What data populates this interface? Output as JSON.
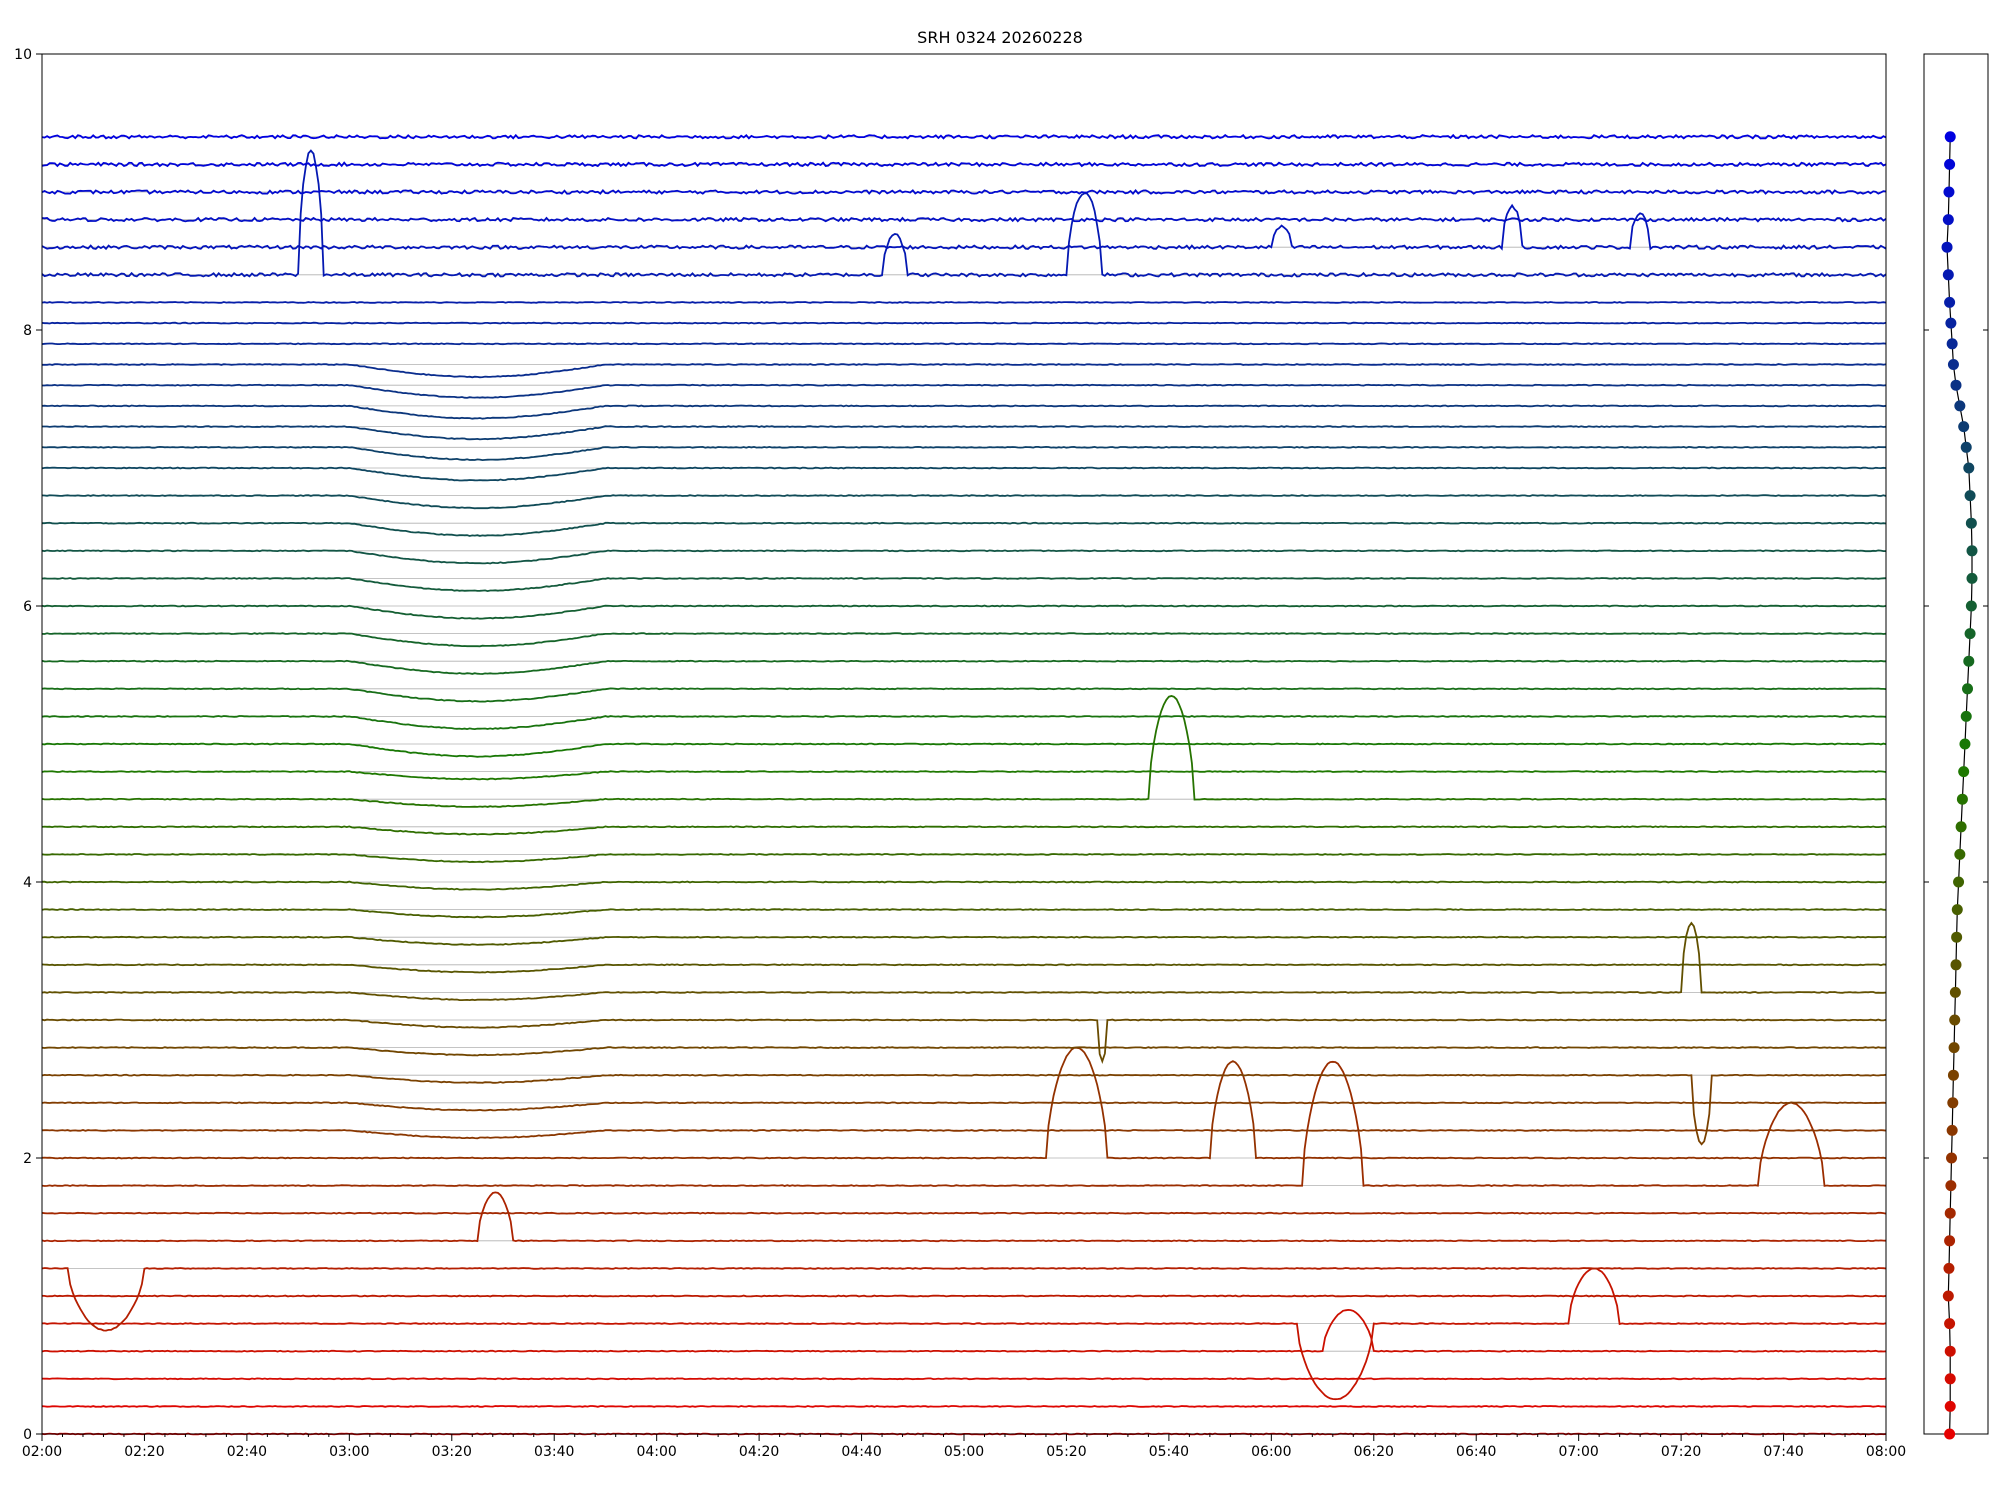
{
  "chart_data": {
    "type": "line",
    "title": "SRH 0324 20260228",
    "xlabel": "",
    "ylabel": "",
    "xlim": [
      "02:00",
      "08:00"
    ],
    "ylim": [
      0,
      10
    ],
    "grid": "horizontal",
    "x_ticks": [
      "02:00",
      "02:20",
      "02:40",
      "03:00",
      "03:20",
      "03:40",
      "04:00",
      "04:20",
      "04:40",
      "05:00",
      "05:20",
      "05:40",
      "06:00",
      "06:20",
      "06:40",
      "07:00",
      "07:20",
      "07:40",
      "08:00"
    ],
    "y_ticks": [
      "0",
      "2",
      "4",
      "6",
      "8",
      "10"
    ],
    "start_color": "#e60000",
    "mid_color": "#1a7a00",
    "end_color": "#0000e0",
    "series_levels": [
      0.0,
      0.2,
      0.4,
      0.6,
      0.8,
      1.0,
      1.2,
      1.4,
      1.6,
      1.8,
      2.0,
      2.2,
      2.4,
      2.6,
      2.8,
      3.0,
      3.2,
      3.4,
      3.6,
      3.8,
      4.0,
      4.2,
      4.4,
      4.6,
      4.8,
      5.0,
      5.2,
      5.4,
      5.6,
      5.8,
      6.0,
      6.2,
      6.4,
      6.6,
      6.8,
      7.0,
      7.15,
      7.3,
      7.45,
      7.6,
      7.75,
      7.9,
      8.05,
      8.2,
      8.4,
      8.6,
      8.8,
      9.0,
      9.2,
      9.4
    ],
    "marker_offsets": [
      0.0,
      0.01,
      0.01,
      0.01,
      0.0,
      -0.02,
      -0.01,
      0.0,
      0.01,
      0.02,
      0.03,
      0.04,
      0.05,
      0.06,
      0.07,
      0.08,
      0.09,
      0.1,
      0.11,
      0.12,
      0.14,
      0.16,
      0.18,
      0.2,
      0.22,
      0.24,
      0.26,
      0.28,
      0.3,
      0.32,
      0.34,
      0.35,
      0.35,
      0.34,
      0.32,
      0.3,
      0.26,
      0.22,
      0.16,
      0.1,
      0.06,
      0.04,
      0.02,
      0.0,
      -0.02,
      -0.04,
      -0.02,
      -0.01,
      0.0,
      0.01
    ],
    "events": [
      {
        "series": 44,
        "start": "02:50",
        "end": "02:55",
        "amplitude": 0.9
      },
      {
        "series": 44,
        "start": "05:20",
        "end": "05:27",
        "amplitude": 0.6
      },
      {
        "series": 44,
        "start": "04:44",
        "end": "04:49",
        "amplitude": 0.3
      },
      {
        "series": 45,
        "start": "06:00",
        "end": "06:04",
        "amplitude": 0.15
      },
      {
        "series": 45,
        "start": "06:45",
        "end": "06:49",
        "amplitude": 0.3
      },
      {
        "series": 45,
        "start": "07:10",
        "end": "07:14",
        "amplitude": 0.25
      },
      {
        "series": 23,
        "start": "05:36",
        "end": "05:45",
        "amplitude": 0.75
      },
      {
        "series": 16,
        "start": "07:20",
        "end": "07:24",
        "amplitude": 0.5
      },
      {
        "series": 15,
        "start": "05:26",
        "end": "05:28",
        "amplitude": -0.3
      },
      {
        "series": 13,
        "start": "07:22",
        "end": "07:26",
        "amplitude": -0.5
      },
      {
        "series": 10,
        "start": "05:16",
        "end": "05:28",
        "amplitude": 0.8
      },
      {
        "series": 10,
        "start": "05:48",
        "end": "05:57",
        "amplitude": 0.7
      },
      {
        "series": 9,
        "start": "06:06",
        "end": "06:18",
        "amplitude": 0.9
      },
      {
        "series": 9,
        "start": "07:35",
        "end": "07:48",
        "amplitude": 0.6
      },
      {
        "series": 4,
        "start": "06:05",
        "end": "06:20",
        "amplitude": -0.55
      },
      {
        "series": 4,
        "start": "06:58",
        "end": "07:08",
        "amplitude": 0.4
      },
      {
        "series": 3,
        "start": "06:10",
        "end": "06:20",
        "amplitude": 0.3
      },
      {
        "series": 7,
        "start": "03:25",
        "end": "03:32",
        "amplitude": 0.35
      },
      {
        "series": 6,
        "start": "02:05",
        "end": "02:20",
        "amplitude": -0.45
      }
    ]
  }
}
